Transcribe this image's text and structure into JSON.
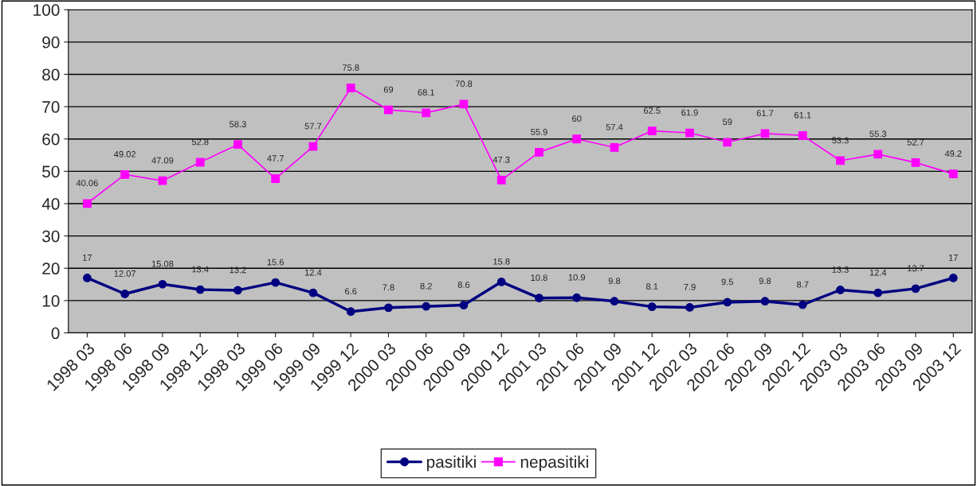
{
  "chart_data": {
    "type": "line",
    "categories": [
      "1998 03",
      "1998 06",
      "1998 09",
      "1998 12",
      "1998 03",
      "1999 06",
      "1999 09",
      "1999 12",
      "2000 03",
      "2000 06",
      "2000 09",
      "2000 12",
      "2001 03",
      "2001 06",
      "2001 09",
      "2001 12",
      "2002 03",
      "2002 06",
      "2002 09",
      "2002 12",
      "2003 03",
      "2003 06",
      "2003 09",
      "2003 12"
    ],
    "series": [
      {
        "name": "pasitiki",
        "color": "#000080",
        "marker": "circle",
        "values": [
          17,
          12.07,
          15.08,
          13.4,
          13.2,
          15.6,
          12.4,
          6.6,
          7.8,
          8.2,
          8.6,
          15.8,
          10.8,
          10.9,
          9.8,
          8.1,
          7.9,
          9.5,
          9.8,
          8.7,
          13.3,
          12.4,
          13.7,
          17
        ]
      },
      {
        "name": "nepasitiki",
        "color": "#ff00ff",
        "marker": "square",
        "values": [
          40.06,
          49.02,
          47.09,
          52.8,
          58.3,
          47.7,
          57.7,
          75.8,
          69,
          68.1,
          70.8,
          47.3,
          55.9,
          60,
          57.4,
          62.5,
          61.9,
          59,
          61.7,
          61.1,
          53.3,
          55.3,
          52.7,
          49.2
        ]
      }
    ],
    "ylim": [
      0,
      100
    ],
    "yticks": [
      0,
      10,
      20,
      30,
      40,
      50,
      60,
      70,
      80,
      90,
      100
    ],
    "grid": "y",
    "legend": "bottom",
    "data_labels": true
  }
}
